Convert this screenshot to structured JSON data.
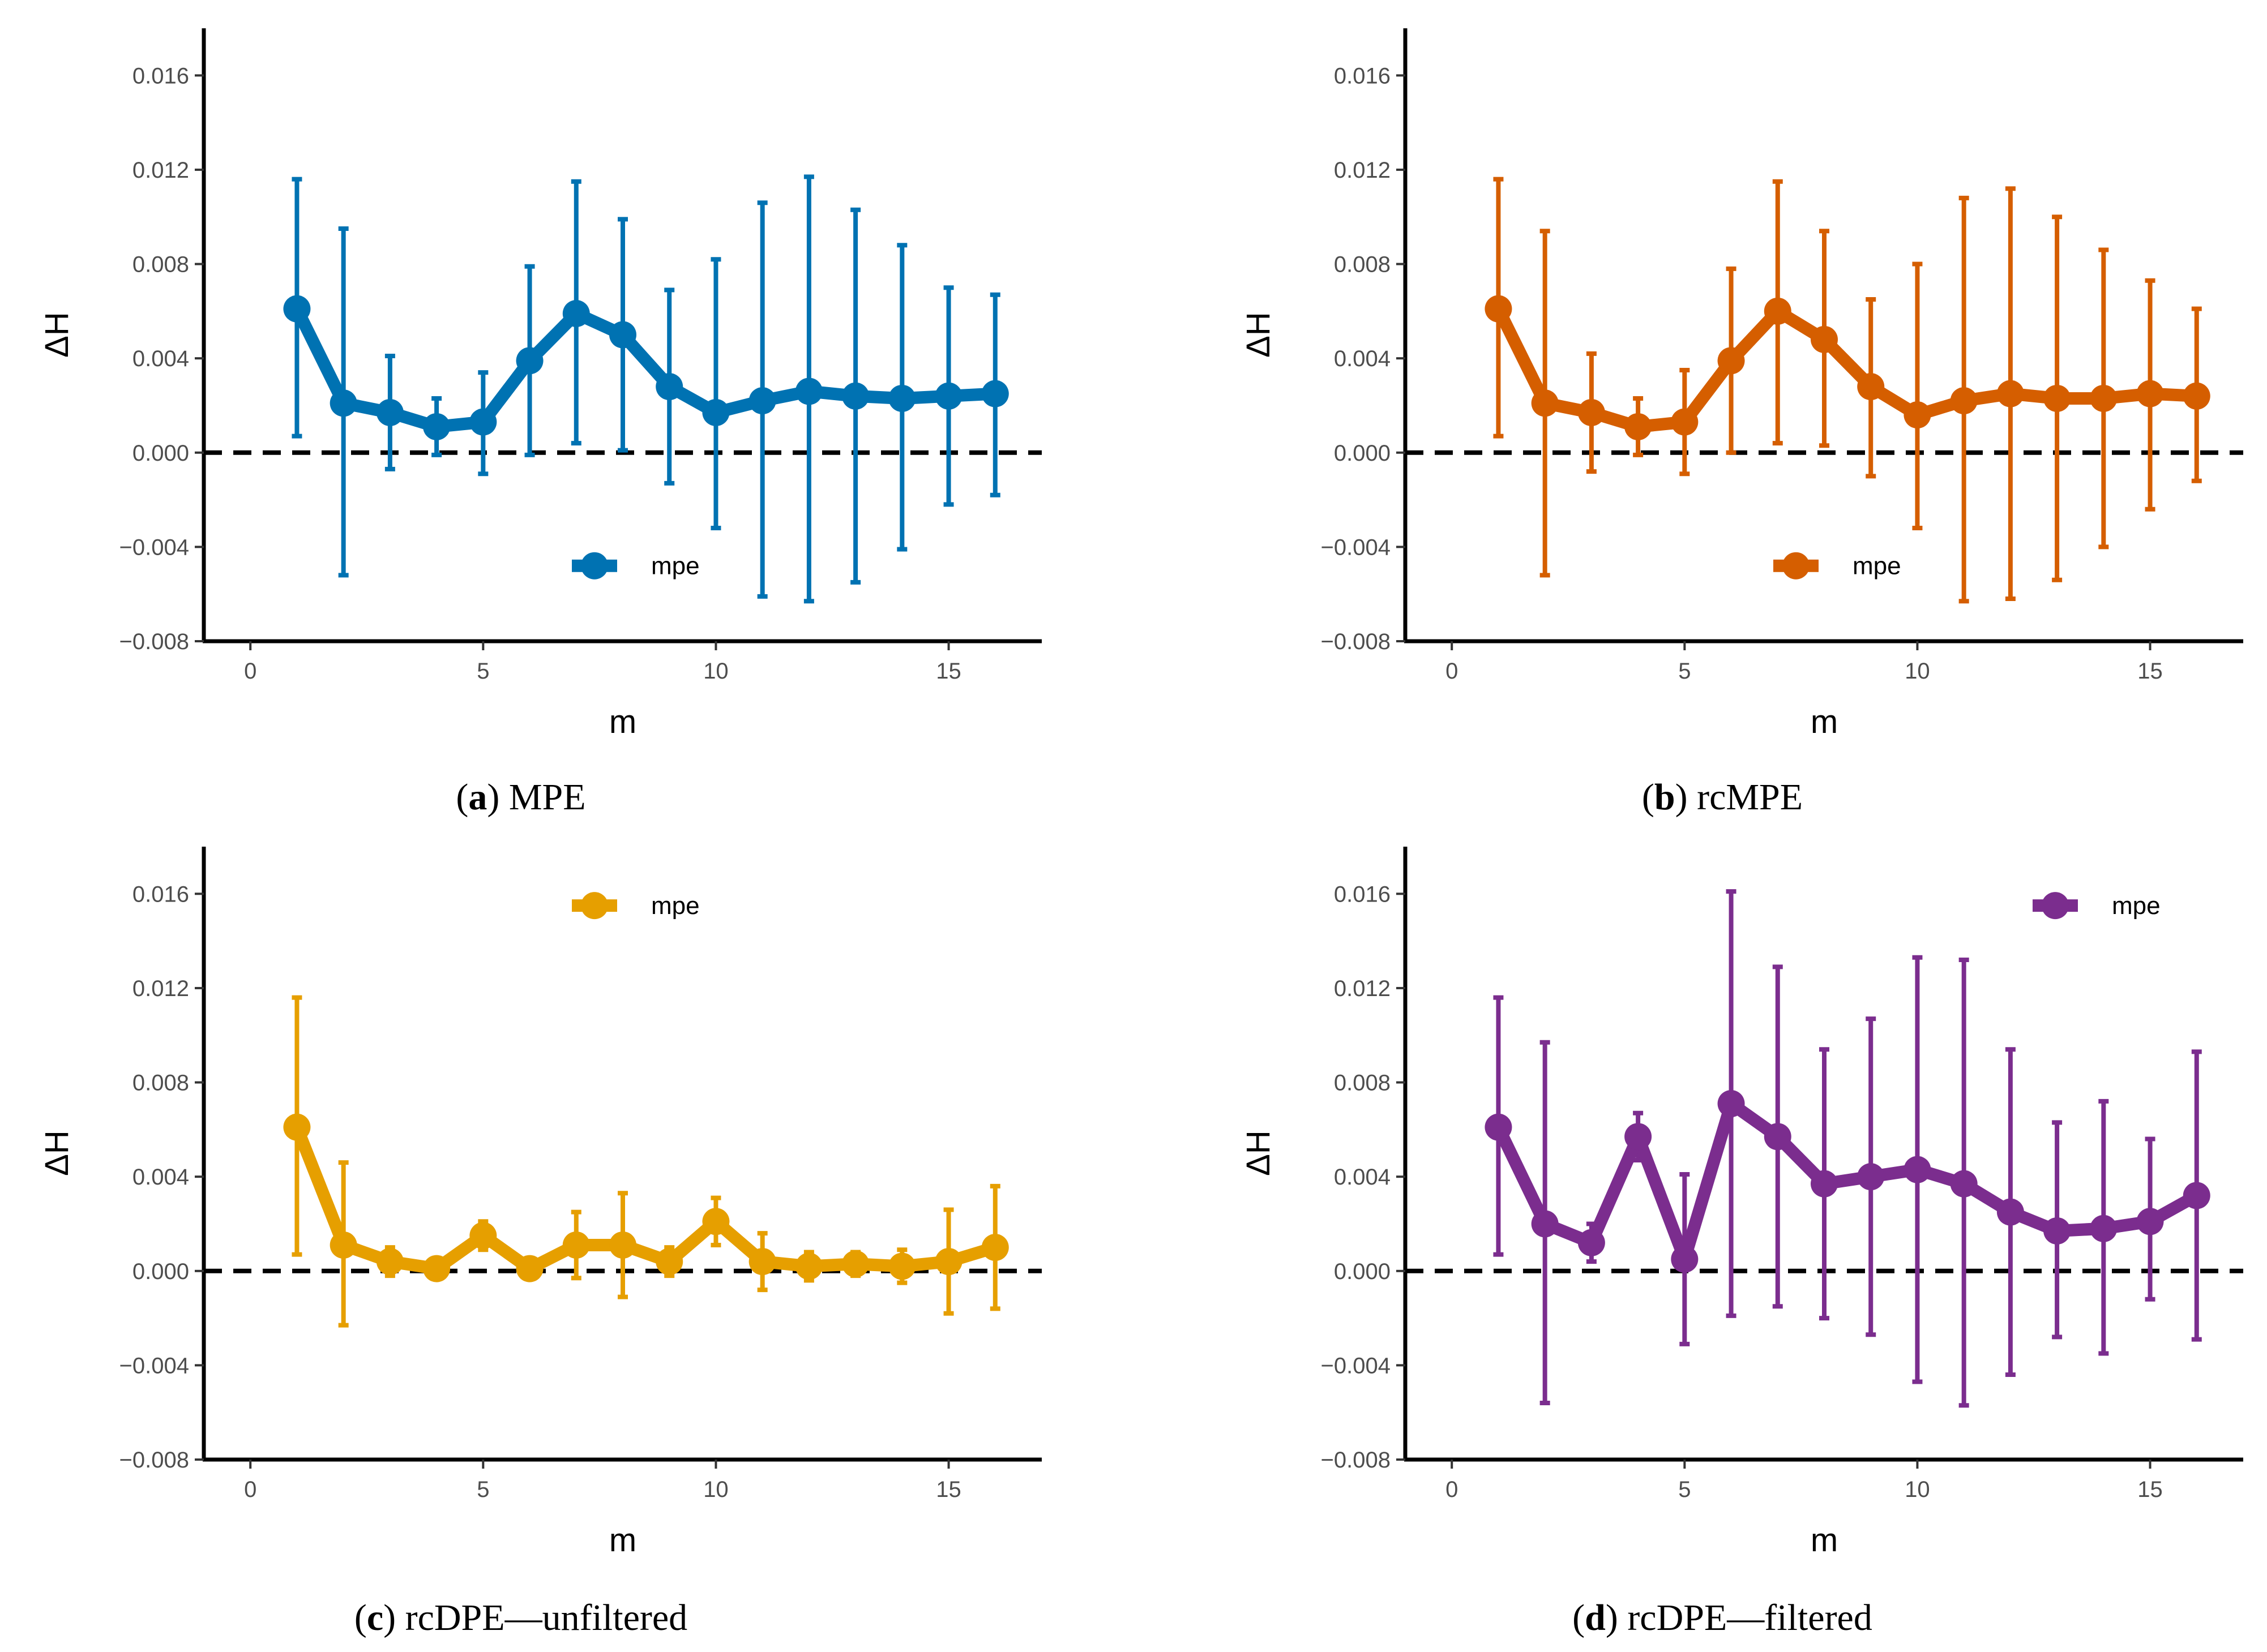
{
  "chart_data": [
    {
      "type": "line",
      "panel_label": "a",
      "caption_text": "MPE",
      "xlabel": "m",
      "ylabel": "ΔH",
      "xlim": [
        -1,
        17
      ],
      "ylim": [
        -0.008,
        0.018
      ],
      "xticks": [
        "0",
        "5",
        "10",
        "15"
      ],
      "yticks": [
        "0.016",
        "0.012",
        "0.008",
        "0.004",
        "0.000",
        "−0.004",
        "−0.008"
      ],
      "reference_line": 0,
      "color": "#0072B2",
      "legend": {
        "label": "mpe",
        "position": "bottom-center"
      },
      "series": [
        {
          "name": "mpe",
          "x": [
            1,
            2,
            3,
            4,
            5,
            6,
            7,
            8,
            9,
            10,
            11,
            12,
            13,
            14,
            15,
            16
          ],
          "y": [
            0.0061,
            0.0021,
            0.0017,
            0.0011,
            0.0013,
            0.0039,
            0.0059,
            0.005,
            0.0028,
            0.0017,
            0.0022,
            0.0026,
            0.0024,
            0.0023,
            0.0024,
            0.0025
          ],
          "lower": [
            0.0007,
            -0.0052,
            -0.0007,
            -0.0001,
            -0.0009,
            -0.0001,
            0.0004,
            0.0001,
            -0.0013,
            -0.0032,
            -0.0061,
            -0.0063,
            -0.0055,
            -0.0041,
            -0.0022,
            -0.0018
          ],
          "upper": [
            0.0116,
            0.0095,
            0.0041,
            0.0023,
            0.0034,
            0.0079,
            0.0115,
            0.0099,
            0.0069,
            0.0082,
            0.0106,
            0.0117,
            0.0103,
            0.0088,
            0.007,
            0.0067
          ]
        }
      ]
    },
    {
      "type": "line",
      "panel_label": "b",
      "caption_text": "rcMPE",
      "xlabel": "m",
      "ylabel": "ΔH",
      "xlim": [
        -1,
        17
      ],
      "ylim": [
        -0.008,
        0.018
      ],
      "xticks": [
        "0",
        "5",
        "10",
        "15"
      ],
      "yticks": [
        "0.016",
        "0.012",
        "0.008",
        "0.004",
        "0.000",
        "−0.004",
        "−0.008"
      ],
      "reference_line": 0,
      "color": "#D55E00",
      "legend": {
        "label": "mpe",
        "position": "bottom-center"
      },
      "series": [
        {
          "name": "mpe",
          "x": [
            1,
            2,
            3,
            4,
            5,
            6,
            7,
            8,
            9,
            10,
            11,
            12,
            13,
            14,
            15,
            16
          ],
          "y": [
            0.0061,
            0.0021,
            0.0017,
            0.0011,
            0.0013,
            0.0039,
            0.006,
            0.0048,
            0.0028,
            0.0016,
            0.0022,
            0.0025,
            0.0023,
            0.0023,
            0.0025,
            0.0024
          ],
          "lower": [
            0.0007,
            -0.0052,
            -0.0008,
            -0.0001,
            -0.0009,
            0.0,
            0.0004,
            0.0003,
            -0.001,
            -0.0032,
            -0.0063,
            -0.0062,
            -0.0054,
            -0.004,
            -0.0024,
            -0.0012
          ],
          "upper": [
            0.0116,
            0.0094,
            0.0042,
            0.0023,
            0.0035,
            0.0078,
            0.0115,
            0.0094,
            0.0065,
            0.008,
            0.0108,
            0.0112,
            0.01,
            0.0086,
            0.0073,
            0.0061
          ]
        }
      ]
    },
    {
      "type": "line",
      "panel_label": "c",
      "caption_text": "rcDPE—unfiltered",
      "xlabel": "m",
      "ylabel": "ΔH",
      "xlim": [
        -1,
        17
      ],
      "ylim": [
        -0.008,
        0.018
      ],
      "xticks": [
        "0",
        "5",
        "10",
        "15"
      ],
      "yticks": [
        "0.016",
        "0.012",
        "0.008",
        "0.004",
        "0.000",
        "−0.004",
        "−0.008"
      ],
      "reference_line": 0,
      "color": "#E69F00",
      "legend": {
        "label": "mpe",
        "position": "top-center"
      },
      "series": [
        {
          "name": "mpe",
          "x": [
            1,
            2,
            3,
            4,
            5,
            6,
            7,
            8,
            9,
            10,
            11,
            12,
            13,
            14,
            15,
            16
          ],
          "y": [
            0.0061,
            0.0011,
            0.0004,
            0.0001,
            0.0015,
            0.0001,
            0.0011,
            0.0011,
            0.0004,
            0.0021,
            0.0004,
            0.0002,
            0.0003,
            0.0002,
            0.0004,
            0.001
          ],
          "lower": [
            0.0007,
            -0.0023,
            -0.0002,
            -0.0001,
            0.0009,
            -0.0001,
            -0.0003,
            -0.0011,
            -0.0002,
            0.0011,
            -0.0008,
            -0.0004,
            -0.0002,
            -0.0005,
            -0.0018,
            -0.0016
          ],
          "upper": [
            0.0116,
            0.0046,
            0.001,
            0.0003,
            0.0021,
            0.0003,
            0.0025,
            0.0033,
            0.001,
            0.0031,
            0.0016,
            0.0008,
            0.0008,
            0.0009,
            0.0026,
            0.0036
          ]
        }
      ]
    },
    {
      "type": "line",
      "panel_label": "d",
      "caption_text": "rcDPE—filtered",
      "xlabel": "m",
      "ylabel": "ΔH",
      "xlim": [
        -1,
        17
      ],
      "ylim": [
        -0.008,
        0.018
      ],
      "xticks": [
        "0",
        "5",
        "10",
        "15"
      ],
      "yticks": [
        "0.016",
        "0.012",
        "0.008",
        "0.004",
        "0.000",
        "−0.004",
        "−0.008"
      ],
      "reference_line": 0,
      "color": "#7B2D8E",
      "legend": {
        "label": "mpe",
        "position": "top-right"
      },
      "series": [
        {
          "name": "mpe",
          "x": [
            1,
            2,
            3,
            4,
            5,
            6,
            7,
            8,
            9,
            10,
            11,
            12,
            13,
            14,
            15,
            16
          ],
          "y": [
            0.0061,
            0.002,
            0.0012,
            0.0057,
            0.0005,
            0.0071,
            0.0057,
            0.0037,
            0.004,
            0.0043,
            0.0037,
            0.0025,
            0.0017,
            0.0018,
            0.0021,
            0.0032
          ],
          "lower": [
            0.0007,
            -0.0056,
            0.0004,
            0.0047,
            -0.0031,
            -0.0019,
            -0.0015,
            -0.002,
            -0.0027,
            -0.0047,
            -0.0057,
            -0.0044,
            -0.0028,
            -0.0035,
            -0.0012,
            -0.0029
          ],
          "upper": [
            0.0116,
            0.0097,
            0.002,
            0.0067,
            0.0041,
            0.0161,
            0.0129,
            0.0094,
            0.0107,
            0.0133,
            0.0132,
            0.0094,
            0.0063,
            0.0072,
            0.0056,
            0.0093
          ]
        }
      ]
    }
  ]
}
